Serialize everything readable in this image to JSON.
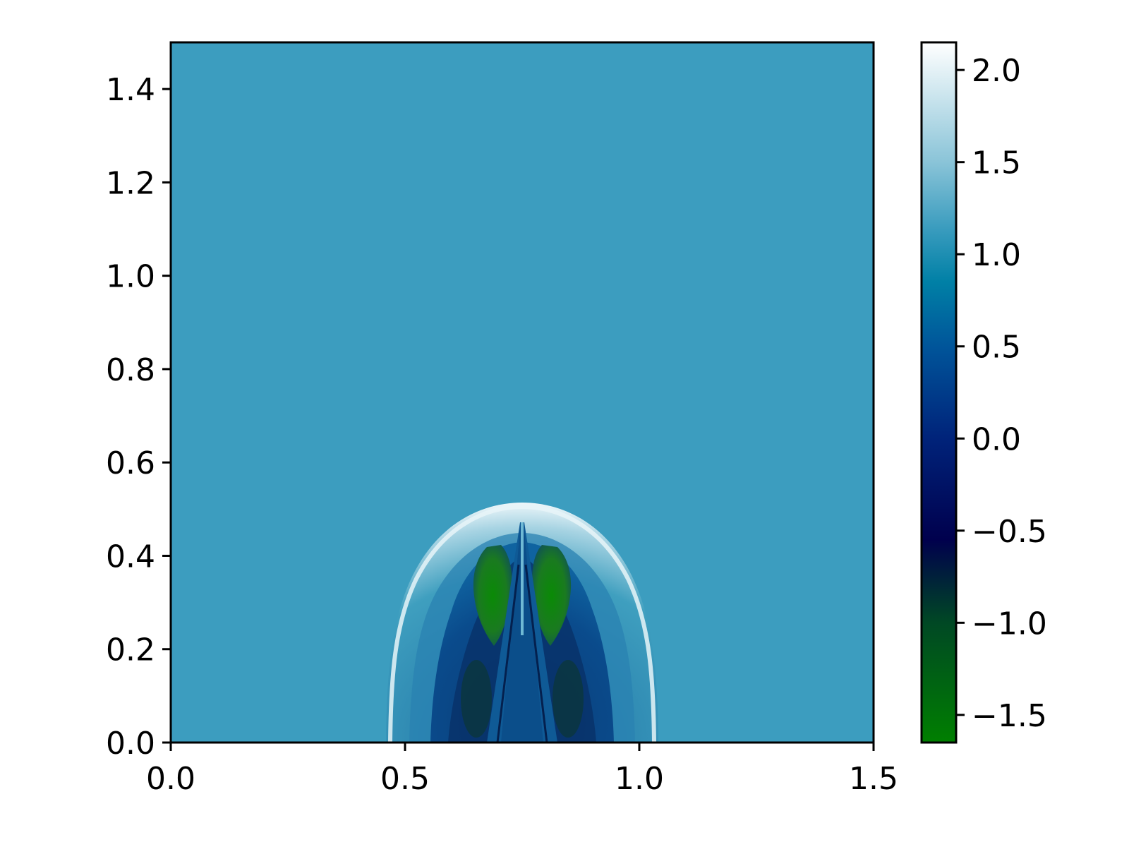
{
  "chart_data": {
    "type": "heatmap",
    "title": "",
    "xlabel": "",
    "ylabel": "",
    "xlim": [
      0.0,
      1.5
    ],
    "ylim": [
      0.0,
      1.5
    ],
    "xticks": [
      "0.0",
      "0.5",
      "1.0",
      "1.5"
    ],
    "yticks": [
      "0.0",
      "0.2",
      "0.4",
      "0.6",
      "0.8",
      "1.0",
      "1.2",
      "1.4"
    ],
    "grid": false,
    "background_value": 1.15,
    "colorbar": {
      "colormap": "ocean_r",
      "range": [
        -1.65,
        2.15
      ],
      "ticks": [
        "2.0",
        "1.5",
        "1.0",
        "0.5",
        "0.0",
        "−0.5",
        "−1.0",
        "−1.5"
      ],
      "stops": [
        {
          "value": -1.65,
          "color": "#007f00"
        },
        {
          "value": -1.0,
          "color": "#004824"
        },
        {
          "value": -0.55,
          "color": "#00004d"
        },
        {
          "value": 0.0,
          "color": "#00237a"
        },
        {
          "value": 0.5,
          "color": "#00559a"
        },
        {
          "value": 0.85,
          "color": "#0080a6"
        },
        {
          "value": 1.15,
          "color": "#3c9dbf"
        },
        {
          "value": 1.5,
          "color": "#8ac4d8"
        },
        {
          "value": 2.15,
          "color": "#ffffff"
        }
      ]
    },
    "features": [
      {
        "name": "bow-shock-front",
        "x": 0.75,
        "y_top": 0.52,
        "x_left": 0.46,
        "x_right": 1.04,
        "value": 2.05
      },
      {
        "name": "inner-cavity",
        "x": 0.75,
        "y_top": 0.47,
        "x_left": 0.57,
        "x_right": 0.93,
        "value": 0.3
      },
      {
        "name": "low-value-lobe-left",
        "x": 0.69,
        "y": 0.31,
        "value": -1.55
      },
      {
        "name": "low-value-lobe-right",
        "x": 0.81,
        "y": 0.31,
        "value": -1.55
      },
      {
        "name": "central-jet",
        "x": 0.75,
        "y_top": 0.47,
        "value": 0.75
      }
    ]
  }
}
